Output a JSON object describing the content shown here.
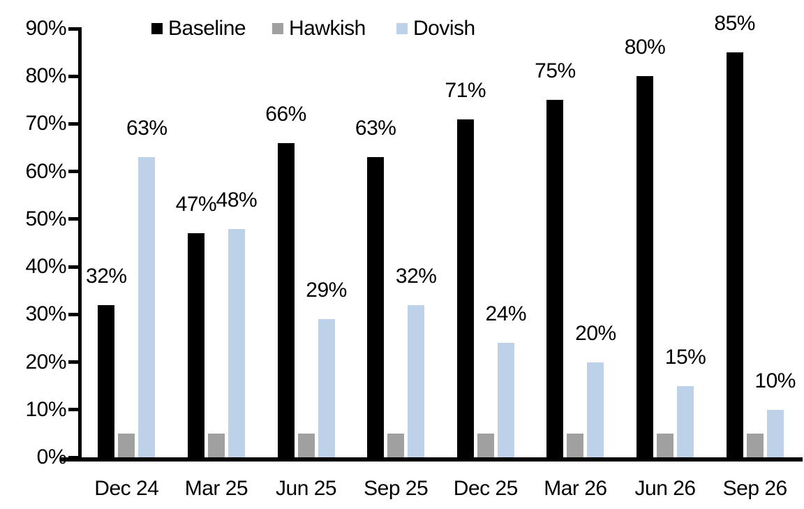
{
  "chart_data": {
    "type": "bar",
    "title": "",
    "xlabel": "",
    "ylabel": "",
    "categories": [
      "Dec 24",
      "Mar 25",
      "Jun 25",
      "Sep 25",
      "Dec 25",
      "Mar 26",
      "Jun 26",
      "Sep 26"
    ],
    "series": [
      {
        "name": "Baseline",
        "color": "#000000",
        "values": [
          32,
          47,
          66,
          63,
          71,
          75,
          80,
          85
        ],
        "labels": [
          "32%",
          "47%",
          "66%",
          "63%",
          "71%",
          "75%",
          "80%",
          "85%"
        ]
      },
      {
        "name": "Hawkish",
        "color": "#A0A0A0",
        "values": [
          5,
          5,
          5,
          5,
          5,
          5,
          5,
          5
        ],
        "labels": [
          "",
          "",
          "",
          "",
          "",
          "",
          "",
          ""
        ]
      },
      {
        "name": "Dovish",
        "color": "#BDD1E8",
        "values": [
          63,
          48,
          29,
          32,
          24,
          20,
          15,
          10
        ],
        "labels": [
          "63%",
          "48%",
          "29%",
          "32%",
          "24%",
          "20%",
          "15%",
          "10%"
        ]
      }
    ],
    "ylim": [
      0,
      90
    ],
    "ytick_step": 10,
    "ytick_labels": [
      "0%",
      "10%",
      "20%",
      "30%",
      "40%",
      "50%",
      "60%",
      "70%",
      "80%",
      "90%"
    ],
    "legend_position": "top",
    "grid": false,
    "axis_color": "#000000",
    "text_color": "#000000"
  }
}
